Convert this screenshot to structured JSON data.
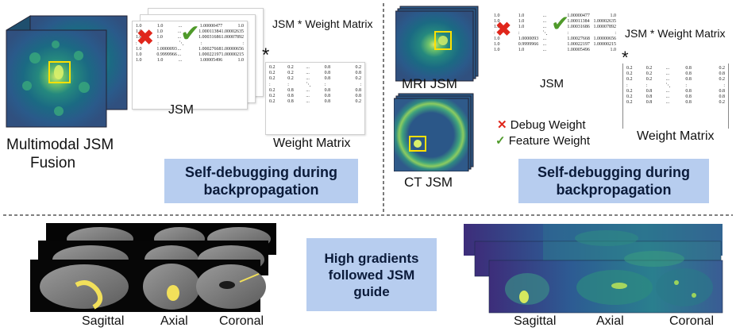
{
  "left_panel": {
    "caption": "Multimodal JSM Fusion",
    "caption_line1": "Multimodal JSM",
    "caption_line2": "Fusion",
    "jsm_label": "JSM",
    "formula": "JSM * Weight Matrix",
    "star": "*",
    "weight_label": "Weight Matrix",
    "box_text_line1": "Self-debugging during",
    "box_text_line2": "backpropagation"
  },
  "right_panel": {
    "mri_label": "MRI JSM",
    "ct_label": "CT JSM",
    "jsm_label": "JSM",
    "formula": "JSM * Weight Matrix",
    "star": "*",
    "weight_label": "Weight Matrix",
    "legend": {
      "debug_mark": "✕",
      "debug_text": "Debug Weight",
      "feature_mark": "✓",
      "feature_text": "Feature Weight"
    },
    "box_text_line1": "Self-debugging during",
    "box_text_line2": "backpropagation"
  },
  "bottom_panel": {
    "center_line1": "High gradients",
    "center_line2": "followed JSM",
    "center_line3": "guide",
    "left_views": [
      "Sagittal",
      "Axial",
      "Coronal"
    ],
    "right_views": [
      "Sagittal",
      "Axial",
      "Coronal"
    ]
  },
  "jsm_matrix": {
    "rows": [
      [
        "1.0",
        "1.0",
        "...",
        "1.00000477",
        "1.0"
      ],
      [
        "1.0",
        "1.0",
        "...",
        "1.00011384",
        "1.00002635"
      ],
      [
        "1.0",
        "1.0",
        "...",
        "1.00031686",
        "1.00007892"
      ],
      [
        ":",
        ":",
        "⋱",
        ":",
        ":"
      ],
      [
        "1.0",
        "1.0000093",
        "...",
        "1.00027668",
        "1.00000656"
      ],
      [
        "1.0",
        "0.9999966",
        "...",
        "1.00022197",
        "1.00000215"
      ],
      [
        "1.0",
        "1.0",
        "...",
        "1.00005496",
        "1.0"
      ]
    ]
  },
  "weight_matrix": {
    "rows": [
      [
        "0.2",
        "0.2",
        "...",
        "0.8",
        "0.2"
      ],
      [
        "0.2",
        "0.2",
        "...",
        "0.8",
        "0.8"
      ],
      [
        "0.2",
        "0.2",
        "...",
        "0.8",
        "0.2"
      ],
      [
        ":",
        ":",
        "⋱",
        ":",
        ":"
      ],
      [
        "0.2",
        "0.8",
        "...",
        "0.8",
        "0.8"
      ],
      [
        "0.2",
        "0.8",
        "...",
        "0.8",
        "0.8"
      ],
      [
        "0.2",
        "0.8",
        "...",
        "0.8",
        "0.2"
      ]
    ]
  },
  "colors": {
    "box_fill": "#b7cdef",
    "cross": "#e0261b",
    "check": "#4f9a2a",
    "highlight": "#ffe000"
  }
}
